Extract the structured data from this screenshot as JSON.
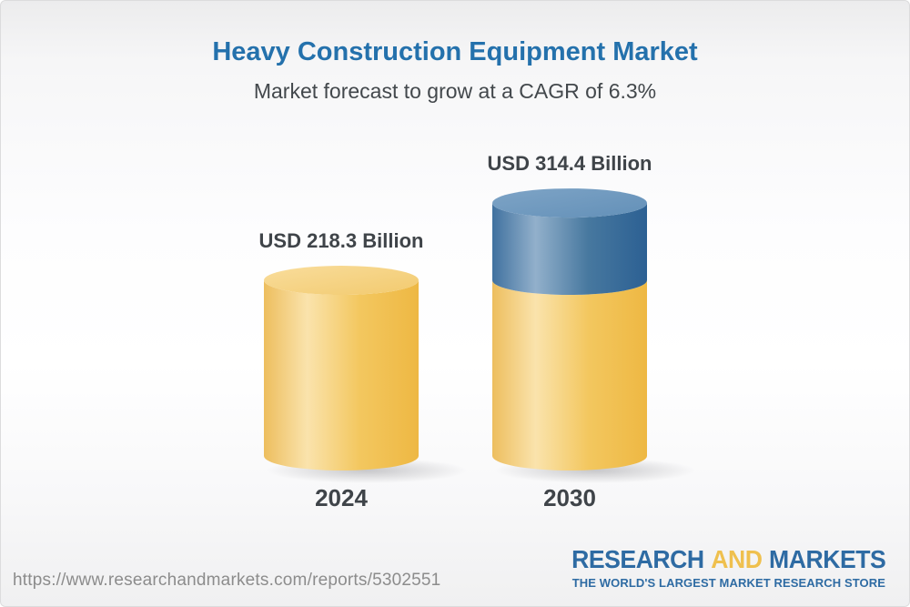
{
  "header": {
    "title": "Heavy Construction Equipment Market",
    "subtitle": "Market forecast to grow at a CAGR of 6.3%"
  },
  "chart_data": {
    "type": "bar",
    "subtype": "3d-cylinder-stacked",
    "title": "Heavy Construction Equipment Market",
    "subtitle": "Market forecast to grow at a CAGR of 6.3%",
    "unit": "USD Billion",
    "cagr_pct": 6.3,
    "categories": [
      "2024",
      "2030"
    ],
    "values": [
      218.3,
      314.4
    ],
    "value_labels": [
      "USD 218.3 Billion",
      "USD 314.4 Billion"
    ],
    "bar_colors": [
      [
        "#F2C45F"
      ],
      [
        "#F2C45F",
        "#4478A6"
      ]
    ],
    "stacked_visual_note": "2030 cylinder shows the 2024-equivalent portion in yellow with the additional growth segment in blue on top",
    "legend": "none",
    "grid": false,
    "axes": "none",
    "colors": {
      "cylinder_yellow": "#F2C45F",
      "cylinder_blue": "#4478A6",
      "title_blue": "#2471AC",
      "label_text": "#3F4449",
      "url_gray": "#8C8C8C",
      "logo_blue": "#2E6BA3",
      "logo_yellow": "#EFC04E"
    }
  },
  "footer": {
    "url": "https://www.researchandmarkets.com/reports/5302551",
    "logo": {
      "word1": "RESEARCH",
      "word2": "AND",
      "word3": "MARKETS",
      "tagline": "THE WORLD'S LARGEST MARKET RESEARCH STORE"
    }
  }
}
